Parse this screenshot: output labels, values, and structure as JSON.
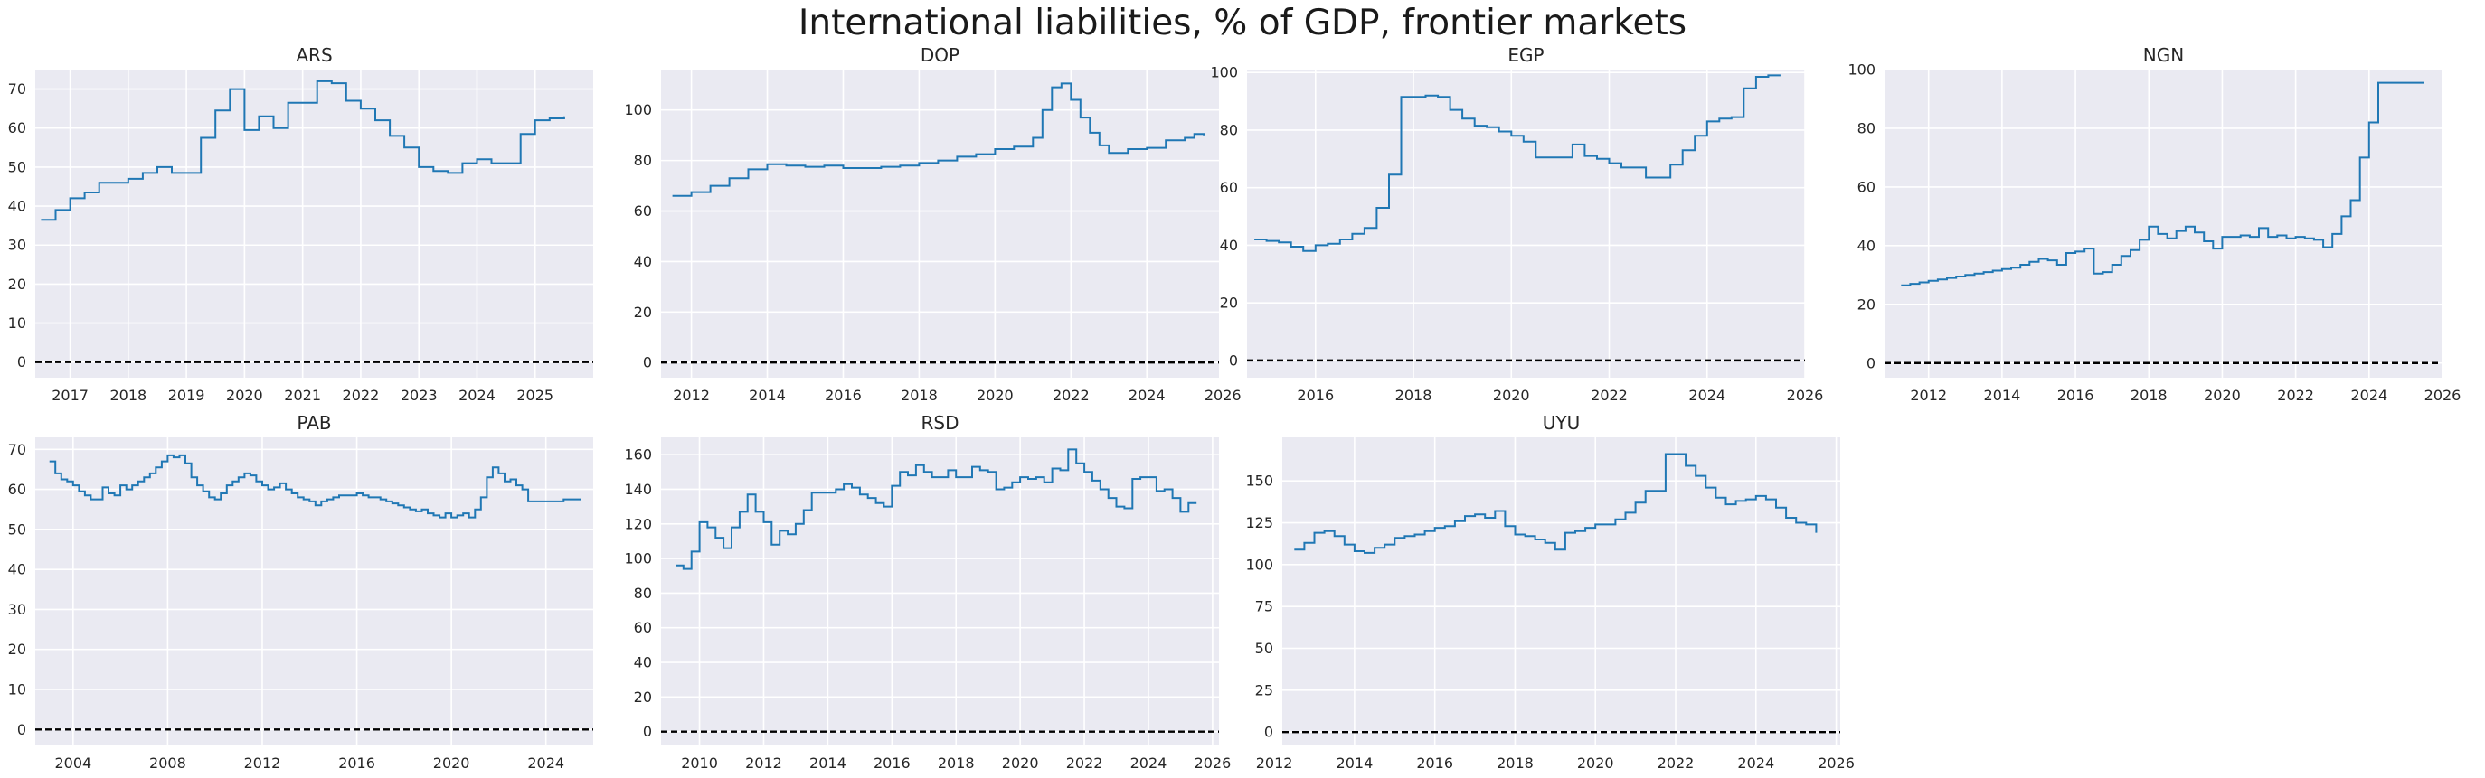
{
  "title": "International liabilities, % of GDP, frontier markets",
  "colors": {
    "series": "#1f77b4",
    "plot_background": "#eaeaf2",
    "grid": "#ffffff",
    "zero_line": "#000000"
  },
  "chart_data": [
    {
      "type": "line",
      "step": true,
      "title": "ARS",
      "xlim": [
        2016.4,
        2026.0
      ],
      "ylim": [
        -4,
        75
      ],
      "xticks": [
        2017,
        2018,
        2019,
        2020,
        2021,
        2022,
        2023,
        2024,
        2025
      ],
      "yticks": [
        0,
        10,
        20,
        30,
        40,
        50,
        60,
        70
      ],
      "hline": 0,
      "x": [
        2016.5,
        2016.75,
        2017.0,
        2017.25,
        2017.5,
        2017.75,
        2018.0,
        2018.25,
        2018.5,
        2018.75,
        2019.0,
        2019.25,
        2019.5,
        2019.75,
        2020.0,
        2020.25,
        2020.5,
        2020.75,
        2021.0,
        2021.25,
        2021.5,
        2021.75,
        2022.0,
        2022.25,
        2022.5,
        2022.75,
        2023.0,
        2023.25,
        2023.5,
        2023.75,
        2024.0,
        2024.25,
        2024.5,
        2024.75,
        2025.0,
        2025.25,
        2025.5
      ],
      "y": [
        36.5,
        39,
        42,
        43.5,
        46,
        46,
        47,
        48.5,
        50,
        48.5,
        48.5,
        57.5,
        64.5,
        70,
        59.5,
        63,
        60,
        66.5,
        66.5,
        72,
        71.5,
        67,
        65,
        62,
        58,
        55,
        50,
        49,
        48.5,
        51,
        52,
        51,
        51,
        58.5,
        62,
        62.5,
        63
      ]
    },
    {
      "type": "line",
      "step": true,
      "title": "DOP",
      "xlim": [
        2011.2,
        2025.9
      ],
      "ylim": [
        -6,
        116
      ],
      "xticks": [
        2012,
        2014,
        2016,
        2018,
        2020,
        2022,
        2024,
        2026
      ],
      "yticks": [
        0,
        20,
        40,
        60,
        80,
        100
      ],
      "hline": 0,
      "x": [
        2011.5,
        2012.0,
        2012.5,
        2013.0,
        2013.5,
        2014.0,
        2014.5,
        2015.0,
        2015.5,
        2016.0,
        2016.5,
        2017.0,
        2017.5,
        2018.0,
        2018.5,
        2019.0,
        2019.5,
        2020.0,
        2020.5,
        2021.0,
        2021.25,
        2021.5,
        2021.75,
        2022.0,
        2022.25,
        2022.5,
        2022.75,
        2023.0,
        2023.5,
        2024.0,
        2024.5,
        2025.0,
        2025.25,
        2025.5
      ],
      "y": [
        66,
        67.5,
        70,
        73,
        76.5,
        78.5,
        78,
        77.5,
        78,
        77,
        77,
        77.5,
        78,
        79,
        80,
        81.5,
        82.5,
        84.5,
        85.5,
        89,
        100,
        109,
        110.5,
        104,
        97,
        91,
        86,
        83,
        84.5,
        85,
        88,
        89,
        90.5,
        90
      ]
    },
    {
      "type": "line",
      "step": true,
      "title": "EGP",
      "xlim": [
        2014.6,
        2026.0
      ],
      "ylim": [
        -6,
        101
      ],
      "xticks": [
        2016,
        2018,
        2020,
        2022,
        2024,
        2026
      ],
      "yticks": [
        0,
        20,
        40,
        60,
        80,
        100
      ],
      "hline": 0,
      "x": [
        2014.75,
        2015.0,
        2015.25,
        2015.5,
        2015.75,
        2016.0,
        2016.25,
        2016.5,
        2016.75,
        2017.0,
        2017.25,
        2017.5,
        2017.75,
        2018.0,
        2018.25,
        2018.5,
        2018.75,
        2019.0,
        2019.25,
        2019.5,
        2019.75,
        2020.0,
        2020.25,
        2020.5,
        2020.75,
        2021.0,
        2021.25,
        2021.5,
        2021.75,
        2022.0,
        2022.25,
        2022.5,
        2022.75,
        2023.0,
        2023.25,
        2023.5,
        2023.75,
        2024.0,
        2024.25,
        2024.5,
        2024.75,
        2025.0,
        2025.25,
        2025.5
      ],
      "y": [
        42,
        41.5,
        41,
        39.5,
        38,
        40,
        40.5,
        42,
        44,
        46,
        53,
        64.5,
        91.5,
        91.5,
        92,
        91.5,
        87,
        84,
        81.5,
        81,
        79.5,
        78,
        76,
        70.5,
        70.5,
        70.5,
        75,
        71,
        70,
        68.5,
        67,
        67,
        63.5,
        63.5,
        68,
        73,
        78,
        83,
        84,
        84.5,
        94.5,
        98.5,
        99,
        99
      ]
    },
    {
      "type": "line",
      "step": true,
      "title": "NGN",
      "xlim": [
        2010.8,
        2026.0
      ],
      "ylim": [
        -5,
        100
      ],
      "xticks": [
        2012,
        2014,
        2016,
        2018,
        2020,
        2022,
        2024,
        2026
      ],
      "yticks": [
        0,
        20,
        40,
        60,
        80,
        100
      ],
      "hline": 0,
      "x": [
        2011.25,
        2011.5,
        2011.75,
        2012.0,
        2012.25,
        2012.5,
        2012.75,
        2013.0,
        2013.25,
        2013.5,
        2013.75,
        2014.0,
        2014.25,
        2014.5,
        2014.75,
        2015.0,
        2015.25,
        2015.5,
        2015.75,
        2016.0,
        2016.25,
        2016.5,
        2016.75,
        2017.0,
        2017.25,
        2017.5,
        2017.75,
        2018.0,
        2018.25,
        2018.5,
        2018.75,
        2019.0,
        2019.25,
        2019.5,
        2019.75,
        2020.0,
        2020.25,
        2020.5,
        2020.75,
        2021.0,
        2021.25,
        2021.5,
        2021.75,
        2022.0,
        2022.25,
        2022.5,
        2022.75,
        2023.0,
        2023.25,
        2023.5,
        2023.75,
        2024.0,
        2024.25,
        2024.5,
        2024.75,
        2025.0,
        2025.25,
        2025.5
      ],
      "y": [
        26.5,
        27,
        27.5,
        28,
        28.5,
        29,
        29.5,
        30,
        30.5,
        31,
        31.5,
        32,
        32.5,
        33.5,
        34.5,
        35.5,
        35,
        33.5,
        37.5,
        38,
        39,
        30.5,
        31,
        33.5,
        36.5,
        38.5,
        42,
        46.5,
        44,
        42.5,
        45,
        46.5,
        44.5,
        41.5,
        39,
        43,
        43,
        43.5,
        43,
        46,
        43,
        43.5,
        42.5,
        43,
        42.5,
        42,
        39.5,
        44,
        50,
        55.5,
        70,
        82,
        95.5,
        95.5,
        95.5,
        95.5,
        95.5,
        95.5
      ]
    },
    {
      "type": "line",
      "step": true,
      "title": "PAB",
      "xlim": [
        2002.4,
        2026.0
      ],
      "ylim": [
        -4,
        73
      ],
      "xticks": [
        2004,
        2008,
        2012,
        2016,
        2020,
        2024
      ],
      "yticks": [
        0,
        10,
        20,
        30,
        40,
        50,
        60,
        70
      ],
      "hline": 0,
      "x": [
        2003.0,
        2003.25,
        2003.5,
        2003.75,
        2004.0,
        2004.25,
        2004.5,
        2004.75,
        2005.0,
        2005.25,
        2005.5,
        2005.75,
        2006.0,
        2006.25,
        2006.5,
        2006.75,
        2007.0,
        2007.25,
        2007.5,
        2007.75,
        2008.0,
        2008.25,
        2008.5,
        2008.75,
        2009.0,
        2009.25,
        2009.5,
        2009.75,
        2010.0,
        2010.25,
        2010.5,
        2010.75,
        2011.0,
        2011.25,
        2011.5,
        2011.75,
        2012.0,
        2012.25,
        2012.5,
        2012.75,
        2013.0,
        2013.25,
        2013.5,
        2013.75,
        2014.0,
        2014.25,
        2014.5,
        2014.75,
        2015.0,
        2015.25,
        2015.5,
        2015.75,
        2016.0,
        2016.25,
        2016.5,
        2016.75,
        2017.0,
        2017.25,
        2017.5,
        2017.75,
        2018.0,
        2018.25,
        2018.5,
        2018.75,
        2019.0,
        2019.25,
        2019.5,
        2019.75,
        2020.0,
        2020.25,
        2020.5,
        2020.75,
        2021.0,
        2021.25,
        2021.5,
        2021.75,
        2022.0,
        2022.25,
        2022.5,
        2022.75,
        2023.0,
        2023.25,
        2023.5,
        2023.75,
        2024.0,
        2024.25,
        2024.5,
        2024.75,
        2025.0,
        2025.25,
        2025.5
      ],
      "y": [
        67,
        64,
        62.5,
        62,
        61,
        59.5,
        58.5,
        57.5,
        57.5,
        60.5,
        59,
        58.5,
        61,
        60,
        61,
        62,
        63,
        64,
        65.5,
        67,
        68.5,
        68,
        68.5,
        66.5,
        63,
        61,
        59.5,
        58,
        57.5,
        59,
        61,
        62,
        63,
        64,
        63.5,
        62,
        61,
        60,
        60.5,
        61.5,
        60,
        59,
        58,
        57.5,
        57,
        56,
        57,
        57.5,
        58,
        58.5,
        58.5,
        58.5,
        59,
        58.5,
        58,
        58,
        57.5,
        57,
        56.5,
        56,
        55.5,
        55,
        54.5,
        55,
        54,
        53.5,
        53,
        54,
        53,
        53.5,
        54,
        53,
        55,
        58,
        63,
        65.5,
        64,
        62,
        62.5,
        61,
        60,
        57,
        57,
        57,
        57,
        57,
        57,
        57.5,
        57.5,
        57.5,
        57.5
      ]
    },
    {
      "type": "line",
      "step": true,
      "title": "RSD",
      "xlim": [
        2008.8,
        2026.2
      ],
      "ylim": [
        -8,
        170
      ],
      "xticks": [
        2010,
        2012,
        2014,
        2016,
        2018,
        2020,
        2022,
        2024,
        2026
      ],
      "yticks": [
        0,
        20,
        40,
        60,
        80,
        100,
        120,
        140,
        160
      ],
      "hline": 0,
      "x": [
        2009.25,
        2009.5,
        2009.75,
        2010.0,
        2010.25,
        2010.5,
        2010.75,
        2011.0,
        2011.25,
        2011.5,
        2011.75,
        2012.0,
        2012.25,
        2012.5,
        2012.75,
        2013.0,
        2013.25,
        2013.5,
        2013.75,
        2014.0,
        2014.25,
        2014.5,
        2014.75,
        2015.0,
        2015.25,
        2015.5,
        2015.75,
        2016.0,
        2016.25,
        2016.5,
        2016.75,
        2017.0,
        2017.25,
        2017.5,
        2017.75,
        2018.0,
        2018.25,
        2018.5,
        2018.75,
        2019.0,
        2019.25,
        2019.5,
        2019.75,
        2020.0,
        2020.25,
        2020.5,
        2020.75,
        2021.0,
        2021.25,
        2021.5,
        2021.75,
        2022.0,
        2022.25,
        2022.5,
        2022.75,
        2023.0,
        2023.25,
        2023.5,
        2023.75,
        2024.0,
        2024.25,
        2024.5,
        2024.75,
        2025.0,
        2025.25,
        2025.5
      ],
      "y": [
        96,
        94,
        104,
        121,
        118,
        112,
        106,
        118,
        127,
        137,
        127,
        121,
        108,
        116,
        114,
        120,
        128,
        138,
        138,
        138,
        140,
        143,
        141,
        137,
        135,
        132,
        130,
        142,
        150,
        148,
        154,
        150,
        147,
        147,
        151,
        147,
        147,
        153,
        151,
        150,
        140,
        141,
        144,
        147,
        146,
        147,
        144,
        152,
        151,
        163,
        155,
        150,
        145,
        140,
        135,
        130,
        129,
        146,
        147,
        147,
        139,
        140,
        135,
        127,
        132,
        132
      ]
    },
    {
      "type": "line",
      "step": true,
      "title": "UYU",
      "xlim": [
        2012.2,
        2026.1
      ],
      "ylim": [
        -8,
        176
      ],
      "xticks": [
        2012,
        2014,
        2016,
        2018,
        2020,
        2022,
        2024,
        2026
      ],
      "yticks": [
        0,
        25,
        50,
        75,
        100,
        125,
        150
      ],
      "hline": 0,
      "x": [
        2012.5,
        2012.75,
        2013.0,
        2013.25,
        2013.5,
        2013.75,
        2014.0,
        2014.25,
        2014.5,
        2014.75,
        2015.0,
        2015.25,
        2015.5,
        2015.75,
        2016.0,
        2016.25,
        2016.5,
        2016.75,
        2017.0,
        2017.25,
        2017.5,
        2017.75,
        2018.0,
        2018.25,
        2018.5,
        2018.75,
        2019.0,
        2019.25,
        2019.5,
        2019.75,
        2020.0,
        2020.25,
        2020.5,
        2020.75,
        2021.0,
        2021.25,
        2021.5,
        2021.75,
        2022.0,
        2022.25,
        2022.5,
        2022.75,
        2023.0,
        2023.25,
        2023.5,
        2023.75,
        2024.0,
        2024.25,
        2024.5,
        2024.75,
        2025.0,
        2025.25,
        2025.5
      ],
      "y": [
        109,
        113,
        119,
        120,
        117,
        112,
        108,
        107,
        110,
        112,
        116,
        117,
        118,
        120,
        122,
        123,
        126,
        129,
        130,
        128,
        132,
        123,
        118,
        117,
        115,
        113,
        109,
        119,
        120,
        122,
        124,
        124,
        127,
        131,
        137,
        144,
        144,
        166,
        166,
        159,
        153,
        146,
        140,
        136,
        138,
        139,
        141,
        139,
        134,
        128,
        125,
        124,
        119
      ]
    }
  ]
}
